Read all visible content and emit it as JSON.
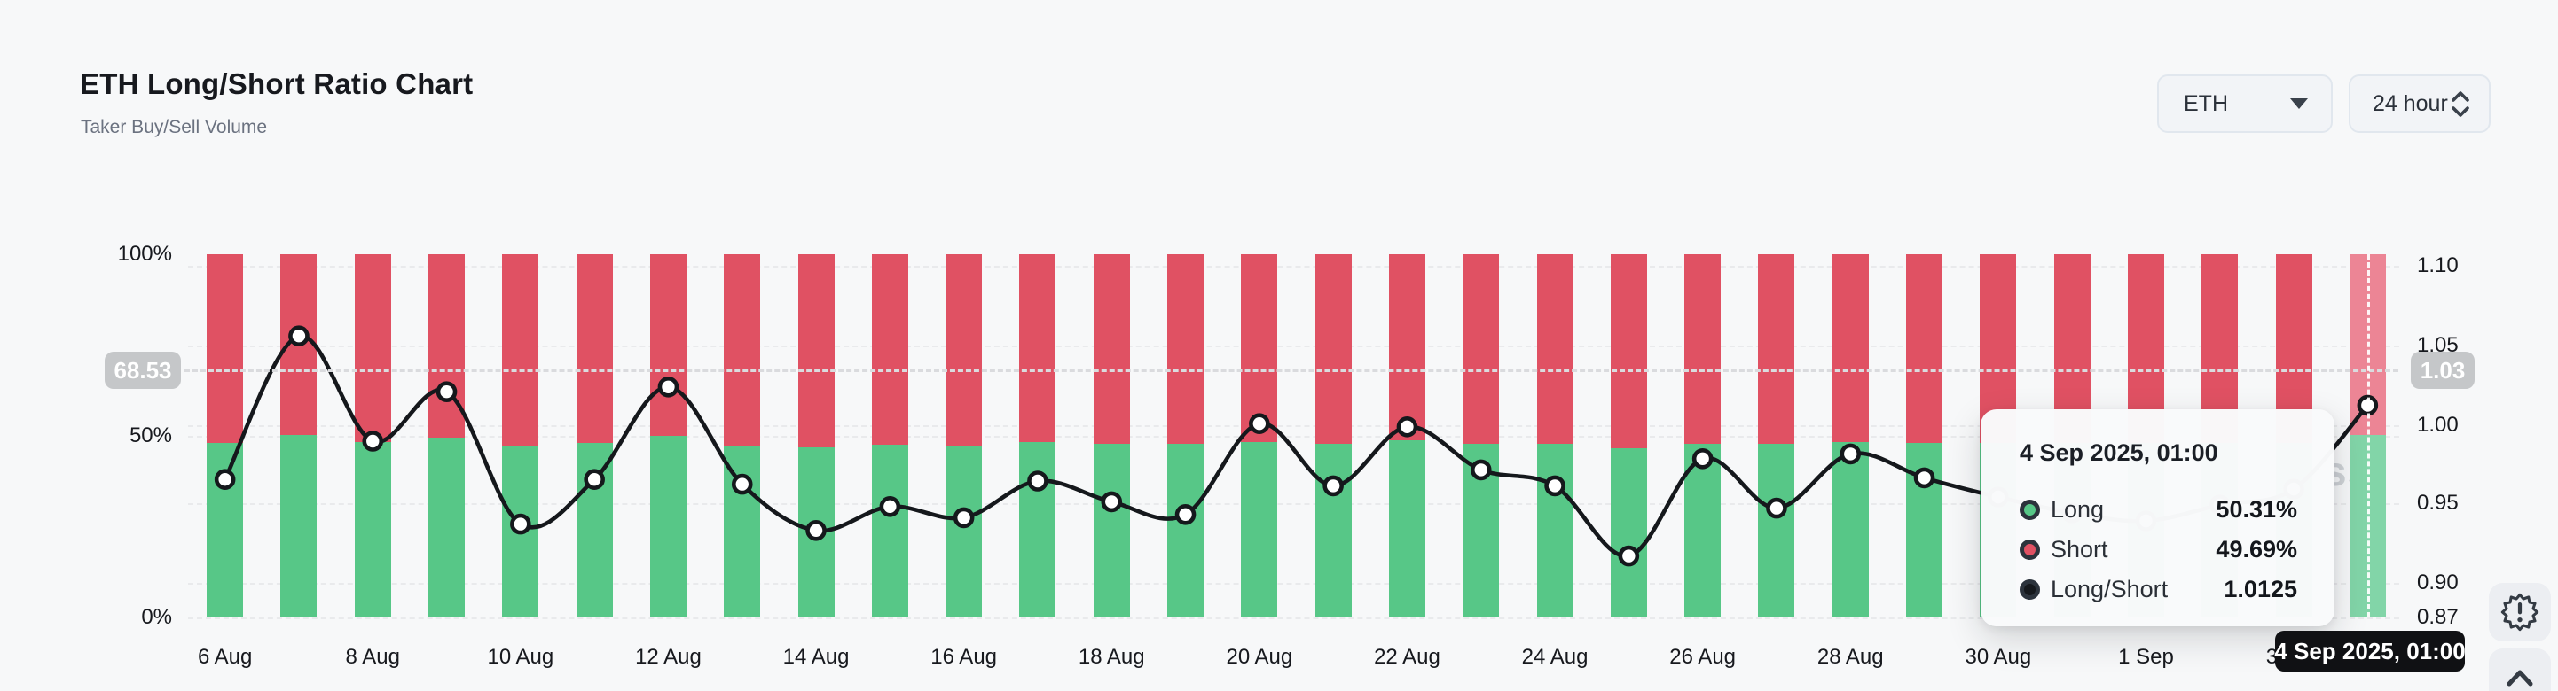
{
  "header": {
    "title": "ETH Long/Short Ratio Chart",
    "subtitle": "Taker Buy/Sell Volume"
  },
  "controls": {
    "symbol_dropdown": {
      "value": "ETH"
    },
    "interval_dropdown": {
      "value": "24 hour"
    }
  },
  "chart_data": {
    "type": "bar",
    "title": "ETH Long/Short Ratio Chart",
    "subtitle": "Taker Buy/Sell Volume",
    "categories": [
      "6 Aug",
      "7 Aug",
      "8 Aug",
      "9 Aug",
      "10 Aug",
      "11 Aug",
      "12 Aug",
      "13 Aug",
      "14 Aug",
      "15 Aug",
      "16 Aug",
      "17 Aug",
      "18 Aug",
      "19 Aug",
      "20 Aug",
      "21 Aug",
      "22 Aug",
      "23 Aug",
      "24 Aug",
      "25 Aug",
      "26 Aug",
      "27 Aug",
      "28 Aug",
      "29 Aug",
      "30 Aug",
      "31 Aug",
      "1 Sep",
      "2 Sep",
      "3 Sep",
      "4 Sep"
    ],
    "series": [
      {
        "name": "Long",
        "unit": "%",
        "color": "#57c787",
        "values": [
          48.0,
          50.3,
          48.3,
          49.4,
          47.2,
          48.0,
          49.9,
          47.4,
          46.9,
          47.6,
          47.4,
          48.4,
          47.7,
          47.8,
          48.3,
          47.8,
          48.8,
          47.9,
          47.8,
          46.6,
          47.8,
          47.8,
          48.3,
          48.1,
          48.0,
          48.0,
          48.0,
          48.0,
          48.0,
          50.31
        ]
      },
      {
        "name": "Short",
        "unit": "%",
        "color": "#e05163",
        "values": [
          52.0,
          49.7,
          51.7,
          50.6,
          52.8,
          52.0,
          50.1,
          52.6,
          53.1,
          52.4,
          52.6,
          51.6,
          52.3,
          52.2,
          51.7,
          52.2,
          51.2,
          52.1,
          52.2,
          53.4,
          52.2,
          52.2,
          51.7,
          51.9,
          52.0,
          52.0,
          52.0,
          52.0,
          52.0,
          49.69
        ]
      },
      {
        "name": "Long/Short",
        "type": "line",
        "color": "#15181c",
        "values": [
          0.966,
          1.056,
          0.99,
          1.021,
          0.938,
          0.966,
          1.024,
          0.963,
          0.934,
          0.949,
          0.942,
          0.965,
          0.952,
          0.944,
          1.001,
          0.962,
          0.999,
          0.972,
          0.962,
          0.918,
          0.979,
          0.948,
          0.982,
          0.967,
          0.955,
          0.945,
          0.94,
          0.95,
          0.96,
          1.0125
        ]
      }
    ],
    "highlight_last_bar_colors": {
      "long": "#82d5a8",
      "short": "#ec8595"
    },
    "left_axis": {
      "ticks": [
        "100%",
        "50%",
        "0%"
      ],
      "range": [
        0,
        100
      ]
    },
    "right_axis": {
      "ticks": [
        "1.10",
        "1.05",
        "1.00",
        "0.95",
        "0.90",
        "0.87"
      ],
      "range": [
        0.87,
        1.1
      ]
    },
    "x_tick_labels": [
      "6 Aug",
      "8 Aug",
      "10 Aug",
      "12 Aug",
      "14 Aug",
      "16 Aug",
      "18 Aug",
      "20 Aug",
      "22 Aug",
      "24 Aug",
      "26 Aug",
      "28 Aug",
      "30 Aug",
      "1 Sep",
      "3 Sep"
    ],
    "grid": "dotted-horizontal",
    "legend_position": "tooltip-only"
  },
  "crosshair": {
    "left_badge": "68.53",
    "right_badge": "1.03",
    "date_badge": "4 Sep 2025, 01:00"
  },
  "tooltip": {
    "header": "4 Sep 2025, 01:00",
    "rows": [
      {
        "label": "Long",
        "value": "50.31%",
        "color": "#57c787"
      },
      {
        "label": "Short",
        "value": "49.69%",
        "color": "#e05163"
      },
      {
        "label": "Long/Short",
        "value": "1.0125",
        "color": "#15181c"
      }
    ]
  },
  "watermark": {
    "visible_text": "ss"
  }
}
